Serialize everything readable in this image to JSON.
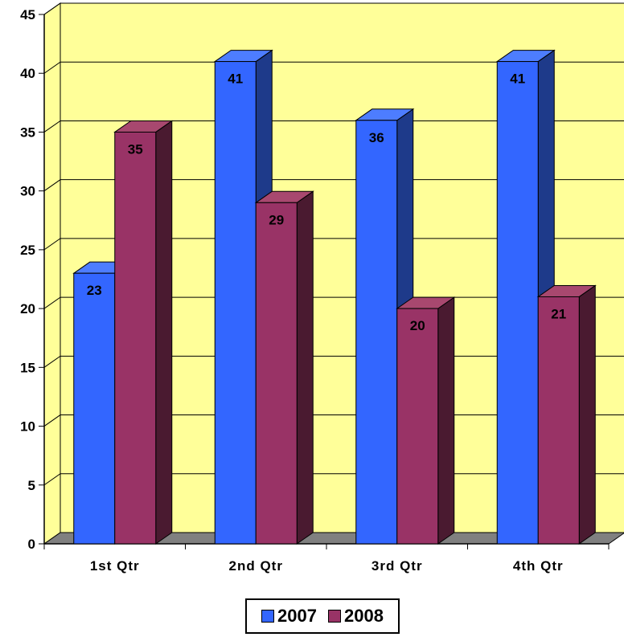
{
  "chart_data": {
    "type": "bar",
    "title": "",
    "xlabel": "",
    "ylabel": "",
    "categories": [
      "1st Qtr",
      "2nd Qtr",
      "3rd Qtr",
      "4th Qtr"
    ],
    "series": [
      {
        "name": "2007",
        "values": [
          23,
          41,
          36,
          41
        ],
        "color": "#3366ff",
        "side_color": "#1e3a8a",
        "top_color": "#4d7dff"
      },
      {
        "name": "2008",
        "values": [
          35,
          29,
          20,
          21
        ],
        "color": "#993366",
        "side_color": "#4a1a30",
        "top_color": "#a8486f"
      }
    ],
    "ylim": [
      0,
      45
    ],
    "yticks": [
      "0",
      "5",
      "10",
      "15",
      "20",
      "25",
      "30",
      "35",
      "40",
      "45"
    ],
    "plot_background": "#ffff99",
    "floor_color": "#808080",
    "grid": true,
    "legend_position": "bottom",
    "data_labels": true
  }
}
